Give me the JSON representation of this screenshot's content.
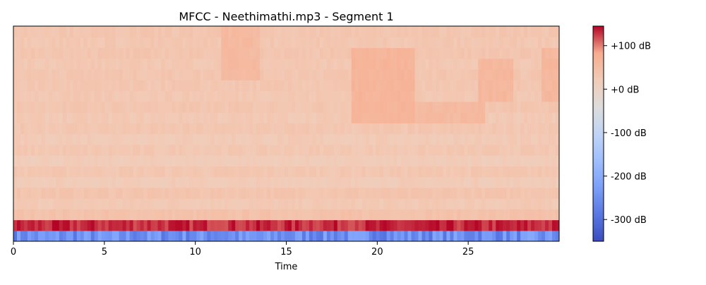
{
  "chart_data": {
    "type": "heatmap",
    "title": "MFCC - Neethimathi.mp3 - Segment 1",
    "xlabel": "Time",
    "ylabel": "",
    "xlim": [
      0,
      30
    ],
    "x_ticks": [
      0,
      5,
      10,
      15,
      20,
      25
    ],
    "x_tick_labels": [
      "0",
      "5",
      "10",
      "15",
      "20",
      "25"
    ],
    "n_coefficients": 20,
    "colormap": "coolwarm",
    "grid": false,
    "colorbar": {
      "vmin": -350,
      "vmax": 145,
      "ticks": [
        100,
        0,
        -100,
        -200,
        -300
      ],
      "tick_labels": [
        "+100 dB",
        "+0 dB",
        "-100 dB",
        "-200 dB",
        "-300 dB"
      ]
    },
    "coefficient_profile": {
      "coefficient_index": [
        0,
        1,
        2,
        3,
        4,
        5,
        6,
        7,
        8,
        9,
        10,
        11,
        12,
        13,
        14,
        15,
        16,
        17,
        18,
        19
      ],
      "typical_value_db": [
        -250,
        130,
        40,
        25,
        35,
        20,
        30,
        18,
        28,
        22,
        30,
        25,
        32,
        28,
        30,
        32,
        28,
        33,
        30,
        32
      ]
    },
    "notable_regions": [
      {
        "time_start": 11.5,
        "time_end": 13.5,
        "coefficients": [
          15,
          19
        ],
        "value_db": 55
      },
      {
        "time_start": 18.5,
        "time_end": 22.0,
        "coefficients": [
          11,
          17
        ],
        "value_db": 65
      },
      {
        "time_start": 21.5,
        "time_end": 26.0,
        "coefficients": [
          11,
          12
        ],
        "value_db": 55
      },
      {
        "time_start": 25.5,
        "time_end": 27.5,
        "coefficients": [
          13,
          16
        ],
        "value_db": 60
      },
      {
        "time_start": 29.0,
        "time_end": 30.0,
        "coefficients": [
          13,
          17
        ],
        "value_db": 60
      }
    ]
  }
}
